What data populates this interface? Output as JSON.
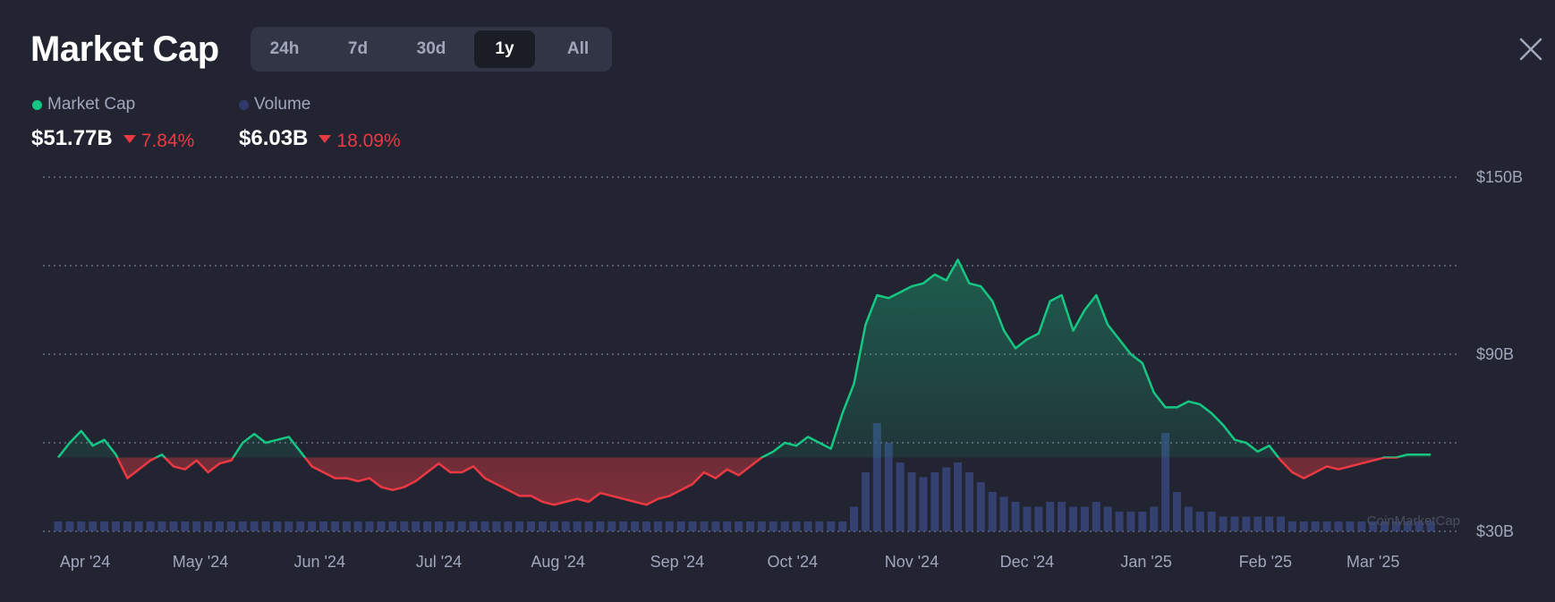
{
  "header": {
    "title": "Market Cap",
    "range_buttons": [
      {
        "label": "24h",
        "active": false
      },
      {
        "label": "7d",
        "active": false
      },
      {
        "label": "30d",
        "active": false
      },
      {
        "label": "1y",
        "active": true
      },
      {
        "label": "All",
        "active": false
      }
    ],
    "close_icon": "close-icon"
  },
  "legend": {
    "market_cap": {
      "label": "Market Cap",
      "color": "#16c784",
      "value": "$51.77B",
      "change": "7.84%"
    },
    "volume": {
      "label": "Volume",
      "color": "#2f3a6b",
      "value": "$6.03B",
      "change": "18.09%"
    }
  },
  "watermark": "CoinMarketCap",
  "colors": {
    "up": "#16c784",
    "down": "#ea3943",
    "volume_bar": "#3a4a86",
    "grid": "#8a8fa3",
    "axis_text": "#a1a7bb"
  },
  "chart_data": {
    "type": "area",
    "title": "",
    "xlabel": "",
    "ylabel": "",
    "ylim": [
      30,
      150
    ],
    "baseline": 55,
    "yticks": [
      {
        "value": 150,
        "label": "$150B"
      },
      {
        "value": 90,
        "label": "$90B"
      },
      {
        "value": 30,
        "label": "$30B"
      }
    ],
    "ygrid": [
      150,
      120,
      90,
      60,
      30
    ],
    "grid": true,
    "x_tick_labels": [
      "Apr '24",
      "May '24",
      "Jun '24",
      "Jul '24",
      "Aug '24",
      "Sep '24",
      "Oct '24",
      "Nov '24",
      "Dec '24",
      "Jan '25",
      "Feb '25",
      "Mar '25"
    ],
    "x_tick_positions": [
      7,
      37,
      68,
      99,
      130,
      161,
      191,
      222,
      252,
      283,
      314,
      342
    ],
    "series": [
      {
        "name": "Market Cap",
        "x": [
          0,
          3,
          6,
          9,
          12,
          15,
          18,
          21,
          24,
          27,
          30,
          33,
          36,
          39,
          42,
          45,
          48,
          51,
          54,
          57,
          60,
          63,
          66,
          69,
          72,
          75,
          78,
          81,
          84,
          87,
          90,
          93,
          96,
          99,
          102,
          105,
          108,
          111,
          114,
          117,
          120,
          123,
          126,
          129,
          132,
          135,
          138,
          141,
          144,
          147,
          150,
          153,
          156,
          159,
          162,
          165,
          168,
          171,
          174,
          177,
          180,
          183,
          186,
          189,
          192,
          195,
          198,
          201,
          204,
          207,
          210,
          213,
          216,
          219,
          222,
          225,
          228,
          231,
          234,
          237,
          240,
          243,
          246,
          249,
          252,
          255,
          258,
          261,
          264,
          267,
          270,
          273,
          276,
          279,
          282,
          285,
          288,
          291,
          294,
          297,
          300,
          303,
          306,
          309,
          312,
          315,
          318,
          321,
          324,
          327,
          330,
          333,
          336,
          339,
          342,
          345,
          348,
          351,
          354,
          357
        ],
        "values": [
          55,
          60,
          64,
          59,
          61,
          56,
          48,
          51,
          54,
          56,
          52,
          51,
          54,
          50,
          53,
          54,
          60,
          63,
          60,
          61,
          62,
          57,
          52,
          50,
          48,
          48,
          47,
          48,
          45,
          44,
          45,
          47,
          50,
          53,
          50,
          50,
          52,
          48,
          46,
          44,
          42,
          42,
          40,
          39,
          40,
          41,
          40,
          43,
          42,
          41,
          40,
          39,
          41,
          42,
          44,
          46,
          50,
          48,
          51,
          49,
          52,
          55,
          57,
          60,
          59,
          62,
          60,
          58,
          70,
          80,
          100,
          110,
          109,
          111,
          113,
          114,
          117,
          115,
          122,
          114,
          113,
          108,
          98,
          92,
          95,
          97,
          108,
          110,
          98,
          105,
          110,
          100,
          95,
          90,
          87,
          77,
          72,
          72,
          74,
          73,
          70,
          66,
          61,
          60,
          57,
          59,
          54,
          50,
          48,
          50,
          52,
          51,
          52,
          53,
          54,
          55,
          55,
          56,
          56,
          56
        ],
        "color": "#16c784"
      },
      {
        "name": "Volume",
        "values": [
          2,
          2,
          2,
          2,
          2,
          2,
          2,
          2,
          2,
          2,
          2,
          2,
          2,
          2,
          2,
          2,
          2,
          2,
          2,
          2,
          2,
          2,
          2,
          2,
          2,
          2,
          2,
          2,
          2,
          2,
          2,
          2,
          2,
          2,
          2,
          2,
          2,
          2,
          2,
          2,
          2,
          2,
          2,
          2,
          2,
          2,
          2,
          2,
          2,
          2,
          2,
          2,
          2,
          2,
          2,
          2,
          2,
          2,
          2,
          2,
          2,
          2,
          2,
          2,
          2,
          2,
          2,
          2,
          2,
          5,
          12,
          22,
          18,
          14,
          12,
          11,
          12,
          13,
          14,
          12,
          10,
          8,
          7,
          6,
          5,
          5,
          6,
          6,
          5,
          5,
          6,
          5,
          4,
          4,
          4,
          5,
          20,
          8,
          5,
          4,
          4,
          3,
          3,
          3,
          3,
          3,
          3,
          2,
          2,
          2,
          2,
          2,
          2,
          2,
          2,
          2,
          2,
          2,
          2,
          2
        ],
        "color": "#3a4a86"
      }
    ]
  }
}
